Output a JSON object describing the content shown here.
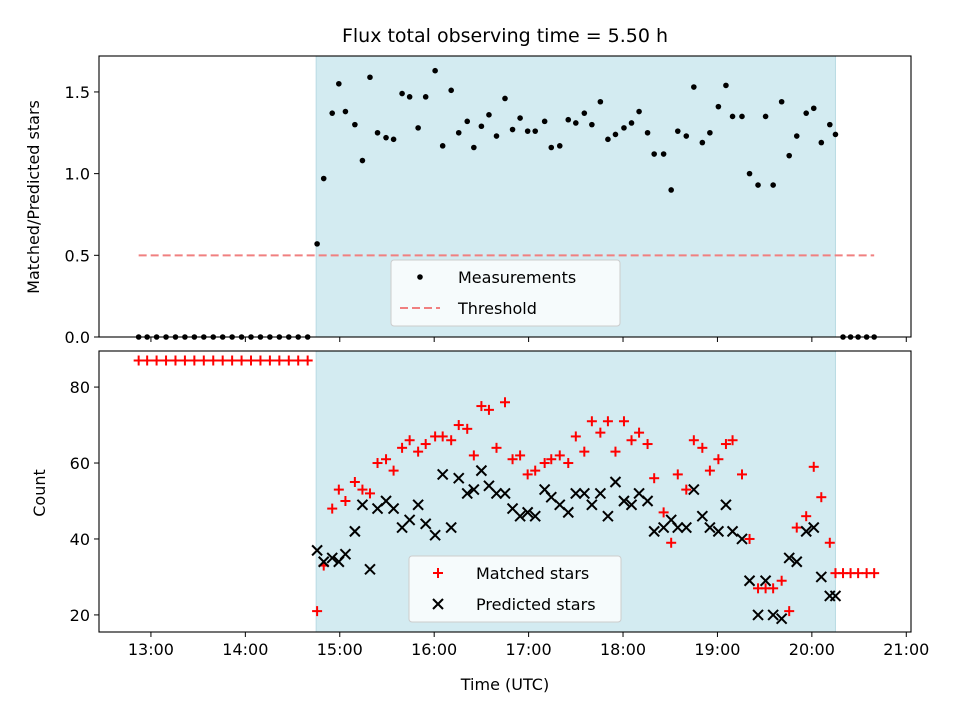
{
  "chart_data": [
    {
      "type": "scatter",
      "title": "Flux total observing time = 5.50 h",
      "xlabel": "",
      "ylabel": "Matched/Predicted stars",
      "xlim": [
        12.45,
        21.05
      ],
      "ylim": [
        0,
        1.72
      ],
      "yticks": [
        0.0,
        0.5,
        1.0,
        1.5
      ],
      "ytick_labels": [
        "0.0",
        "0.5",
        "1.0",
        "1.5"
      ],
      "shaded_interval": [
        14.75,
        20.25
      ],
      "shade_color": "#d3ebf1",
      "threshold": 0.5,
      "legend_position": "lower-center",
      "series": [
        {
          "name": "Measurements",
          "marker": "dot",
          "color": "#000000",
          "x": [
            12.87,
            12.96,
            13.06,
            13.16,
            13.26,
            13.36,
            13.46,
            13.56,
            13.66,
            13.76,
            13.86,
            13.96,
            14.06,
            14.16,
            14.26,
            14.36,
            14.46,
            14.56,
            14.66,
            14.76,
            14.83,
            14.92,
            14.99,
            15.06,
            15.16,
            15.24,
            15.32,
            15.4,
            15.49,
            15.57,
            15.66,
            15.74,
            15.83,
            15.91,
            16.01,
            16.09,
            16.18,
            16.26,
            16.35,
            16.42,
            16.5,
            16.58,
            16.66,
            16.75,
            16.83,
            16.91,
            16.99,
            17.07,
            17.17,
            17.24,
            17.33,
            17.42,
            17.5,
            17.59,
            17.67,
            17.76,
            17.84,
            17.92,
            18.01,
            18.09,
            18.17,
            18.26,
            18.33,
            18.43,
            18.51,
            18.58,
            18.67,
            18.75,
            18.84,
            18.92,
            19.01,
            19.09,
            19.16,
            19.26,
            19.34,
            19.43,
            19.51,
            19.59,
            19.68,
            19.76,
            19.84,
            19.94,
            20.02,
            20.1,
            20.19,
            20.25,
            20.33,
            20.41,
            20.49,
            20.58,
            20.66
          ],
          "y": [
            0,
            0,
            0,
            0,
            0,
            0,
            0,
            0,
            0,
            0,
            0,
            0,
            0,
            0,
            0,
            0,
            0,
            0,
            0,
            0.57,
            0.97,
            1.37,
            1.55,
            1.38,
            1.3,
            1.08,
            1.59,
            1.25,
            1.22,
            1.21,
            1.49,
            1.47,
            1.28,
            1.47,
            1.63,
            1.17,
            1.51,
            1.25,
            1.32,
            1.16,
            1.29,
            1.36,
            1.23,
            1.46,
            1.27,
            1.34,
            1.26,
            1.26,
            1.32,
            1.16,
            1.17,
            1.33,
            1.31,
            1.37,
            1.3,
            1.44,
            1.21,
            1.24,
            1.28,
            1.31,
            1.38,
            1.25,
            1.12,
            1.12,
            0.9,
            1.26,
            1.23,
            1.53,
            1.19,
            1.25,
            1.41,
            1.54,
            1.35,
            1.35,
            1.0,
            0.93,
            1.35,
            0.93,
            1.44,
            1.11,
            1.23,
            1.37,
            1.4,
            1.19,
            1.3,
            1.24,
            0,
            0,
            0,
            0,
            0
          ]
        },
        {
          "name": "Threshold",
          "marker": "dashed-line",
          "color": "#f08080",
          "x": [
            12.87,
            20.66
          ],
          "y": [
            0.5,
            0.5
          ]
        }
      ]
    },
    {
      "type": "scatter",
      "title": "",
      "xlabel": "Time (UTC)",
      "ylabel": "Count",
      "xlim": [
        12.45,
        21.05
      ],
      "ylim": [
        15.5,
        89.5
      ],
      "xticks": [
        13,
        14,
        15,
        16,
        17,
        18,
        19,
        20,
        21
      ],
      "xtick_labels": [
        "13:00",
        "14:00",
        "15:00",
        "16:00",
        "17:00",
        "18:00",
        "19:00",
        "20:00",
        "21:00"
      ],
      "yticks": [
        20,
        40,
        60,
        80
      ],
      "ytick_labels": [
        "20",
        "40",
        "60",
        "80"
      ],
      "shaded_interval": [
        14.75,
        20.25
      ],
      "shade_color": "#d3ebf1",
      "legend_position": "lower-center",
      "series": [
        {
          "name": "Matched stars",
          "marker": "plus",
          "color": "#ff0000",
          "x": [
            12.87,
            12.96,
            13.06,
            13.16,
            13.26,
            13.36,
            13.46,
            13.56,
            13.66,
            13.76,
            13.86,
            13.96,
            14.06,
            14.16,
            14.26,
            14.36,
            14.46,
            14.56,
            14.66,
            14.76,
            14.83,
            14.92,
            14.99,
            15.06,
            15.16,
            15.24,
            15.32,
            15.4,
            15.49,
            15.57,
            15.66,
            15.74,
            15.83,
            15.91,
            16.01,
            16.09,
            16.18,
            16.26,
            16.35,
            16.42,
            16.5,
            16.58,
            16.66,
            16.75,
            16.83,
            16.91,
            16.99,
            17.07,
            17.17,
            17.24,
            17.33,
            17.42,
            17.5,
            17.59,
            17.67,
            17.76,
            17.84,
            17.92,
            18.01,
            18.09,
            18.17,
            18.26,
            18.33,
            18.43,
            18.51,
            18.58,
            18.67,
            18.75,
            18.84,
            18.92,
            19.01,
            19.09,
            19.16,
            19.26,
            19.34,
            19.43,
            19.51,
            19.59,
            19.68,
            19.76,
            19.84,
            19.94,
            20.02,
            20.1,
            20.19,
            20.25,
            20.33,
            20.41,
            20.49,
            20.58,
            20.66
          ],
          "y": [
            87,
            87,
            87,
            87,
            87,
            87,
            87,
            87,
            87,
            87,
            87,
            87,
            87,
            87,
            87,
            87,
            87,
            87,
            87,
            21,
            33,
            48,
            53,
            50,
            55,
            53,
            52,
            60,
            61,
            58,
            64,
            66,
            63,
            65,
            67,
            67,
            66,
            70,
            69,
            62,
            75,
            74,
            64,
            76,
            61,
            62,
            57,
            58,
            60,
            61,
            62,
            60,
            67,
            63,
            71,
            68,
            71,
            63,
            71,
            66,
            68,
            65,
            56,
            47,
            39,
            57,
            53,
            66,
            64,
            58,
            61,
            65,
            66,
            57,
            40,
            27,
            27,
            27,
            29,
            21,
            43,
            46,
            59,
            51,
            39,
            31,
            31,
            31,
            31,
            31,
            31
          ]
        },
        {
          "name": "Predicted stars",
          "marker": "x",
          "color": "#000000",
          "x": [
            14.76,
            14.83,
            14.92,
            14.99,
            15.06,
            15.16,
            15.24,
            15.32,
            15.4,
            15.49,
            15.57,
            15.66,
            15.74,
            15.83,
            15.91,
            16.01,
            16.09,
            16.18,
            16.26,
            16.35,
            16.42,
            16.5,
            16.58,
            16.66,
            16.75,
            16.83,
            16.91,
            16.99,
            17.07,
            17.17,
            17.24,
            17.33,
            17.42,
            17.5,
            17.59,
            17.67,
            17.76,
            17.84,
            17.92,
            18.01,
            18.09,
            18.17,
            18.26,
            18.33,
            18.43,
            18.51,
            18.58,
            18.67,
            18.75,
            18.84,
            18.92,
            19.01,
            19.09,
            19.16,
            19.26,
            19.34,
            19.43,
            19.51,
            19.59,
            19.68,
            19.76,
            19.84,
            19.94,
            20.02,
            20.1,
            20.19,
            20.25
          ],
          "y": [
            37,
            34,
            35,
            34,
            36,
            42,
            49,
            32,
            48,
            50,
            48,
            43,
            45,
            49,
            44,
            41,
            57,
            43,
            56,
            52,
            53,
            58,
            54,
            52,
            52,
            48,
            46,
            47,
            46,
            53,
            51,
            49,
            47,
            52,
            52,
            49,
            52,
            46,
            55,
            50,
            49,
            52,
            50,
            42,
            43,
            45,
            43,
            43,
            53,
            46,
            43,
            42,
            49,
            42,
            40,
            29,
            20,
            29,
            20,
            19,
            35,
            34,
            42,
            43,
            30,
            25,
            25
          ]
        }
      ]
    }
  ]
}
